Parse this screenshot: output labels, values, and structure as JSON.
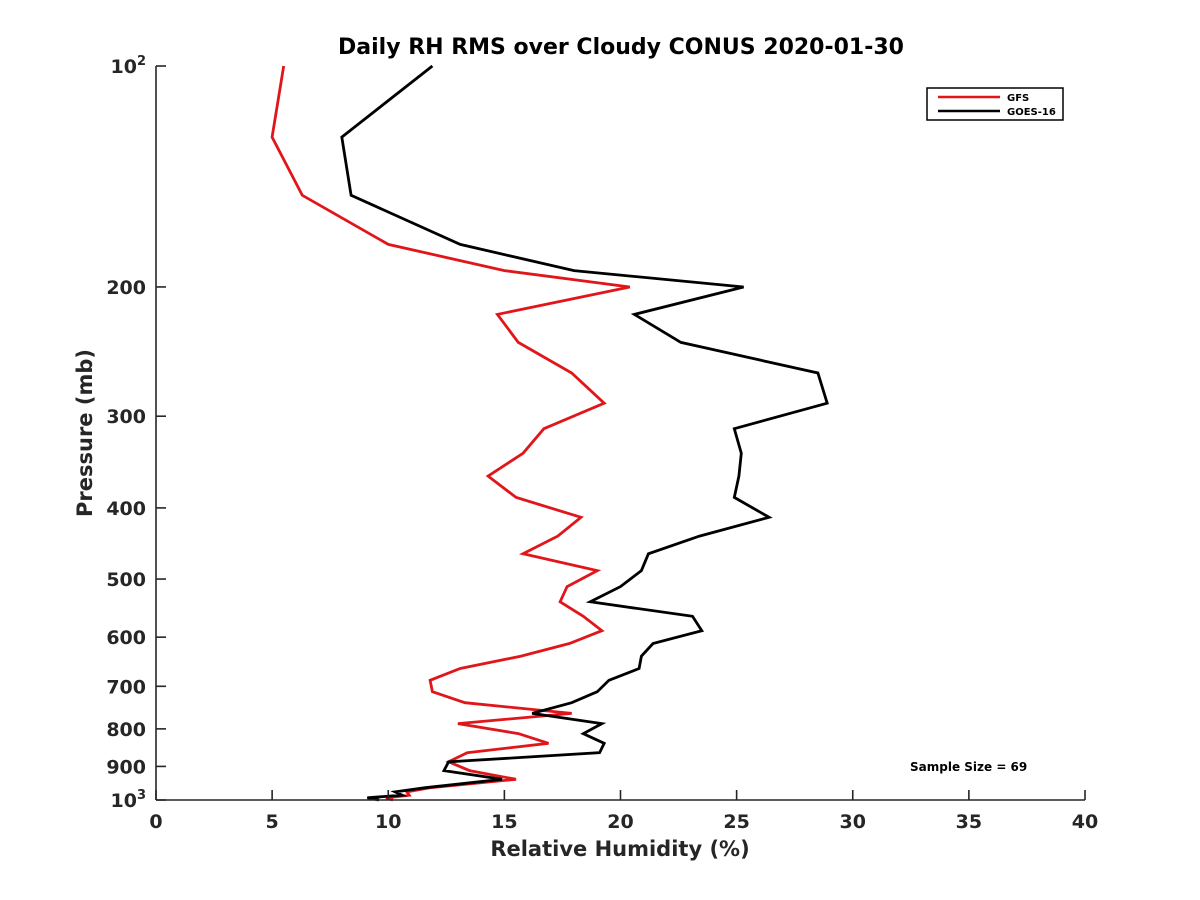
{
  "chart_data": {
    "type": "line",
    "title": "Daily RH RMS over Cloudy CONUS 2020-01-30",
    "xlabel": "Relative Humidity (%)",
    "ylabel": "Pressure (mb)",
    "xlim": [
      0,
      40
    ],
    "ylim": [
      100,
      1000
    ],
    "y_scale": "log",
    "y_reversed": true,
    "grid": false,
    "legend_position": "top-right",
    "x_ticks": [
      0,
      5,
      10,
      15,
      20,
      25,
      30,
      35,
      40
    ],
    "y_ticks": [
      {
        "value": 100,
        "base": "10",
        "exp": "2"
      },
      {
        "value": 200,
        "label": "200"
      },
      {
        "value": 300,
        "label": "300"
      },
      {
        "value": 400,
        "label": "400"
      },
      {
        "value": 500,
        "label": "500"
      },
      {
        "value": 600,
        "label": "600"
      },
      {
        "value": 700,
        "label": "700"
      },
      {
        "value": 800,
        "label": "800"
      },
      {
        "value": 900,
        "label": "900"
      },
      {
        "value": 1000,
        "base": "10",
        "exp": "3"
      }
    ],
    "annotation": "Sample Size = 69",
    "series": [
      {
        "name": "GFS",
        "color": "#e0161b",
        "points": [
          [
            5.5,
            100
          ],
          [
            5.0,
            125
          ],
          [
            6.3,
            150
          ],
          [
            10.0,
            175
          ],
          [
            15.0,
            190
          ],
          [
            20.4,
            200
          ],
          [
            14.7,
            218
          ],
          [
            15.6,
            238
          ],
          [
            17.9,
            262
          ],
          [
            19.3,
            288
          ],
          [
            16.7,
            312
          ],
          [
            15.8,
            337
          ],
          [
            14.3,
            362
          ],
          [
            15.5,
            387
          ],
          [
            18.3,
            412
          ],
          [
            17.3,
            437
          ],
          [
            15.8,
            462
          ],
          [
            19.0,
            487
          ],
          [
            17.7,
            512
          ],
          [
            17.4,
            537
          ],
          [
            18.4,
            562
          ],
          [
            19.2,
            588
          ],
          [
            17.8,
            612
          ],
          [
            15.7,
            637
          ],
          [
            13.1,
            662
          ],
          [
            11.8,
            687
          ],
          [
            11.9,
            712
          ],
          [
            13.3,
            737
          ],
          [
            17.9,
            762
          ],
          [
            13.0,
            787
          ],
          [
            15.6,
            812
          ],
          [
            16.9,
            837
          ],
          [
            13.4,
            862
          ],
          [
            12.6,
            887
          ],
          [
            13.5,
            912
          ],
          [
            15.5,
            937
          ],
          [
            11.8,
            962
          ],
          [
            10.8,
            975
          ],
          [
            10.9,
            985
          ],
          [
            9.9,
            993
          ],
          [
            10.2,
            1000
          ]
        ]
      },
      {
        "name": "GOES-16",
        "color": "#000000",
        "points": [
          [
            11.9,
            100
          ],
          [
            8.0,
            125
          ],
          [
            8.4,
            150
          ],
          [
            13.1,
            175
          ],
          [
            18.0,
            190
          ],
          [
            25.3,
            200
          ],
          [
            20.6,
            218
          ],
          [
            22.6,
            238
          ],
          [
            28.5,
            262
          ],
          [
            28.9,
            288
          ],
          [
            24.9,
            312
          ],
          [
            25.2,
            337
          ],
          [
            25.1,
            362
          ],
          [
            24.9,
            387
          ],
          [
            26.4,
            412
          ],
          [
            23.4,
            437
          ],
          [
            21.2,
            462
          ],
          [
            20.9,
            487
          ],
          [
            20.0,
            512
          ],
          [
            18.7,
            537
          ],
          [
            23.1,
            562
          ],
          [
            23.5,
            588
          ],
          [
            21.4,
            612
          ],
          [
            20.9,
            637
          ],
          [
            20.8,
            662
          ],
          [
            19.5,
            687
          ],
          [
            19.0,
            712
          ],
          [
            17.9,
            737
          ],
          [
            16.2,
            762
          ],
          [
            19.2,
            787
          ],
          [
            18.4,
            812
          ],
          [
            19.3,
            837
          ],
          [
            19.1,
            862
          ],
          [
            12.6,
            887
          ],
          [
            12.4,
            912
          ],
          [
            14.9,
            937
          ],
          [
            11.6,
            962
          ],
          [
            10.3,
            975
          ],
          [
            10.6,
            985
          ],
          [
            9.1,
            993
          ],
          [
            9.6,
            1000
          ]
        ]
      }
    ]
  }
}
